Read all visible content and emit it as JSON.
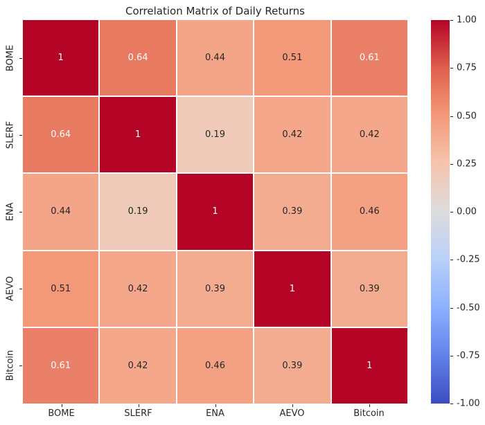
{
  "chart_data": {
    "type": "heatmap",
    "title": "Correlation Matrix of Daily Returns",
    "categories": [
      "BOME",
      "SLERF",
      "ENA",
      "AEVO",
      "Bitcoin"
    ],
    "matrix": [
      [
        1.0,
        0.64,
        0.44,
        0.51,
        0.61
      ],
      [
        0.64,
        1.0,
        0.19,
        0.42,
        0.42
      ],
      [
        0.44,
        0.19,
        1.0,
        0.39,
        0.46
      ],
      [
        0.51,
        0.42,
        0.39,
        1.0,
        0.39
      ],
      [
        0.61,
        0.42,
        0.46,
        0.39,
        1.0
      ]
    ],
    "cell_labels": [
      [
        "1",
        "0.64",
        "0.44",
        "0.51",
        "0.61"
      ],
      [
        "0.64",
        "1",
        "0.19",
        "0.42",
        "0.42"
      ],
      [
        "0.44",
        "0.19",
        "1",
        "0.39",
        "0.46"
      ],
      [
        "0.51",
        "0.42",
        "0.39",
        "1",
        "0.39"
      ],
      [
        "0.61",
        "0.42",
        "0.46",
        "0.39",
        "1"
      ]
    ],
    "vmin": -1,
    "vmax": 1,
    "colormap": "coolwarm",
    "colormap_anchors": [
      {
        "t": 0.0,
        "color": "#3b4cc0"
      },
      {
        "t": 0.125,
        "color": "#6282ea"
      },
      {
        "t": 0.25,
        "color": "#8db0fe"
      },
      {
        "t": 0.375,
        "color": "#b8d0f9"
      },
      {
        "t": 0.5,
        "color": "#dddddd"
      },
      {
        "t": 0.625,
        "color": "#f5c4ad"
      },
      {
        "t": 0.75,
        "color": "#f49a7b"
      },
      {
        "t": 0.875,
        "color": "#de604d"
      },
      {
        "t": 1.0,
        "color": "#b40426"
      }
    ],
    "colorbar_ticks": [
      {
        "value": 1.0,
        "label": "1.00"
      },
      {
        "value": 0.75,
        "label": "0.75"
      },
      {
        "value": 0.5,
        "label": "0.50"
      },
      {
        "value": 0.25,
        "label": "0.25"
      },
      {
        "value": 0.0,
        "label": "0.00"
      },
      {
        "value": -0.25,
        "label": "-0.25"
      },
      {
        "value": -0.5,
        "label": "-0.50"
      },
      {
        "value": -0.75,
        "label": "-0.75"
      },
      {
        "value": -1.0,
        "label": "-1.00"
      }
    ],
    "annotation_text_dark": "#262626",
    "annotation_text_light": "#ffffff",
    "grid_line_color": "#ffffff",
    "legend_position": "right-colorbar",
    "grid": false
  }
}
